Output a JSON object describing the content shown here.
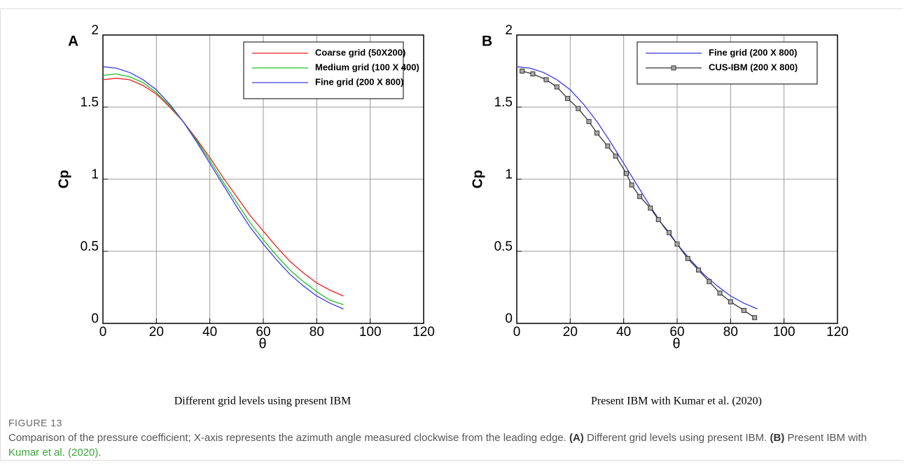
{
  "chart_data": [
    {
      "type": "line",
      "panel_label": "A",
      "title": "Different grid levels using present IBM",
      "xlabel": "θ",
      "ylabel": "Cp",
      "x": [
        0,
        5,
        10,
        15,
        20,
        25,
        30,
        35,
        40,
        45,
        50,
        55,
        60,
        65,
        70,
        75,
        80,
        85,
        90
      ],
      "series": [
        {
          "name": "Coarse grid (50X200)",
          "color": "#e8201f",
          "values": [
            1.69,
            1.7,
            1.69,
            1.65,
            1.59,
            1.5,
            1.4,
            1.28,
            1.15,
            1.01,
            0.88,
            0.75,
            0.64,
            0.53,
            0.43,
            0.35,
            0.28,
            0.23,
            0.19
          ]
        },
        {
          "name": "Medium grid (100 X 400)",
          "color": "#1fc21f",
          "values": [
            1.72,
            1.73,
            1.71,
            1.67,
            1.6,
            1.51,
            1.4,
            1.27,
            1.13,
            0.98,
            0.84,
            0.7,
            0.58,
            0.47,
            0.37,
            0.29,
            0.22,
            0.16,
            0.13
          ]
        },
        {
          "name": "Fine grid (200 X 800)",
          "color": "#3a3ae8",
          "values": [
            1.78,
            1.77,
            1.74,
            1.69,
            1.62,
            1.52,
            1.4,
            1.26,
            1.11,
            0.96,
            0.81,
            0.67,
            0.55,
            0.44,
            0.34,
            0.26,
            0.19,
            0.14,
            0.1
          ]
        }
      ],
      "xlim": [
        0,
        120
      ],
      "xticks": [
        0,
        20,
        40,
        60,
        80,
        100,
        120
      ],
      "ylim": [
        0,
        2
      ],
      "yticks": [
        0,
        0.5,
        1,
        1.5,
        2
      ],
      "grid": true,
      "legend": "upper right"
    },
    {
      "type": "line",
      "panel_label": "B",
      "title": "Present IBM with Kumar et al. (2020)",
      "xlabel": "θ",
      "ylabel": "Cp",
      "series": [
        {
          "name": "Fine grid (200 X 800)",
          "color": "#3a3ae8",
          "x": [
            0,
            5,
            10,
            15,
            20,
            25,
            30,
            35,
            40,
            45,
            50,
            55,
            60,
            65,
            70,
            75,
            80,
            85,
            90
          ],
          "values": [
            1.78,
            1.77,
            1.74,
            1.69,
            1.62,
            1.52,
            1.4,
            1.26,
            1.11,
            0.96,
            0.81,
            0.67,
            0.55,
            0.44,
            0.34,
            0.26,
            0.19,
            0.14,
            0.1
          ]
        },
        {
          "name": "CUS-IBM (200 X 800)",
          "color": "#333333",
          "marker": "square",
          "x": [
            2,
            6,
            11,
            15,
            19,
            23,
            27,
            30,
            34,
            37,
            41,
            43,
            46,
            50,
            53,
            57,
            60,
            64,
            68,
            72,
            76,
            80,
            85,
            89
          ],
          "values": [
            1.75,
            1.73,
            1.69,
            1.64,
            1.56,
            1.49,
            1.4,
            1.32,
            1.23,
            1.16,
            1.04,
            0.96,
            0.88,
            0.8,
            0.72,
            0.63,
            0.55,
            0.45,
            0.37,
            0.29,
            0.21,
            0.15,
            0.09,
            0.04
          ]
        }
      ],
      "xlim": [
        0,
        120
      ],
      "xticks": [
        0,
        20,
        40,
        60,
        80,
        100,
        120
      ],
      "ylim": [
        0,
        2
      ],
      "yticks": [
        0,
        0.5,
        1,
        1.5,
        2
      ],
      "grid": true,
      "legend": "upper right"
    }
  ],
  "figure": {
    "label": "FIGURE 13",
    "caption": [
      "Comparison of the pressure coefficient; X-axis represents the azimuth angle measured clockwise from the leading edge. ",
      "(A)",
      " Different grid levels using present IBM. ",
      "(B)",
      " Present IBM with ",
      "Kumar et al. (2020)",
      "."
    ]
  }
}
